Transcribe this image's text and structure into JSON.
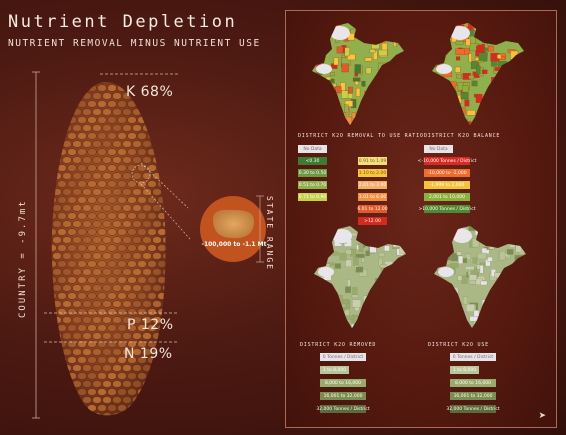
{
  "title": "Nutrient Depletion",
  "subtitle": "NUTRIENT REMOVAL MINUS NUTRIENT USE",
  "country_label": "COUNTRY = -9.7mt",
  "state_range_label": "STATE RANGE",
  "state_range_value": "-100,000 to -1.1 Mt",
  "nutrient_shares": {
    "k": "K 68%",
    "p": "P 12%",
    "n": "N 19%"
  },
  "colors": {
    "background": "#4d1a12",
    "cob": "#8a4a24",
    "kernel": "#b96a33",
    "state_blob": "#d89a54",
    "map_no_data": "#e8e6ea"
  },
  "legends": {
    "ratio": {
      "title": "DISTRICT K2O REMOVAL TO USE RATIO",
      "items": [
        {
          "label": "No Data",
          "color": "#e6e4e8",
          "text": "#7a6a6a"
        },
        {
          "label": "<0.30",
          "color": "#3f7a32",
          "text": "#ffffff"
        },
        {
          "label": "0.30 to 0.50",
          "color": "#6b9a42",
          "text": "#ffffff"
        },
        {
          "label": "0.51 to 0.70",
          "color": "#8fb04c",
          "text": "#ffffff"
        },
        {
          "label": "0.71 to 0.90",
          "color": "#c6d14a",
          "text": "#ffffff"
        },
        {
          "label": "0.91 to 1.09",
          "color": "#f2df7a",
          "text": "#7a5a2a"
        },
        {
          "label": "1.10 to 2.00",
          "color": "#f7c63a",
          "text": "#7a5a2a"
        },
        {
          "label": "2.01 to 3.00",
          "color": "#f4b06a",
          "text": "#ffffff"
        },
        {
          "label": "3.01 to 6.00",
          "color": "#f09040",
          "text": "#ffffff"
        },
        {
          "label": "6.01 to 12.00",
          "color": "#e05a2a",
          "text": "#ffffff"
        },
        {
          "label": ">12.00",
          "color": "#d42a1e",
          "text": "#ffffff"
        }
      ]
    },
    "balance": {
      "title": "DISTRICT K2O BALANCE",
      "items": [
        {
          "label": "No Data",
          "color": "#e6e4e8",
          "text": "#7a6a6a"
        },
        {
          "label": "<-10,000 Tonnes / District",
          "color": "#d82a20",
          "text": "#ffffff"
        },
        {
          "label": "-10,000 to -2,000",
          "color": "#f06a2a",
          "text": "#ffffff"
        },
        {
          "label": "-1,999 to 2,000",
          "color": "#f6c23a",
          "text": "#ffffff"
        },
        {
          "label": "2,001 to 10,000",
          "color": "#8bb23c",
          "text": "#ffffff"
        },
        {
          "label": ">10,000 Tonnes / District",
          "color": "#4e8a32",
          "text": "#ffffff"
        }
      ]
    },
    "removed": {
      "title": "DISTRICT K2O REMOVED",
      "items": [
        {
          "label": "0 Tonnes / District",
          "color": "#e6e4e8",
          "text": "#7a6a6a"
        },
        {
          "label": "1 to 8,000",
          "color": "#b9c497",
          "text": "#ffffff"
        },
        {
          "label": "8,000 to 16,000",
          "color": "#98aa6c",
          "text": "#ffffff"
        },
        {
          "label": "16,001 to 32,000",
          "color": "#7b8d50",
          "text": "#ffffff"
        },
        {
          "label": "32,000 Tonnes / District",
          "color": "#5c6b3a",
          "text": "#ffffff"
        }
      ]
    },
    "use": {
      "title": "DISTRICT K2O USE",
      "items": [
        {
          "label": "0 Tonnes / District",
          "color": "#e6e4e8",
          "text": "#7a6a6a"
        },
        {
          "label": "1 to 8,000",
          "color": "#b9c497",
          "text": "#ffffff"
        },
        {
          "label": "8,000 to 16,000",
          "color": "#98aa6c",
          "text": "#ffffff"
        },
        {
          "label": "16,001 to 32,000",
          "color": "#7b8d50",
          "text": "#ffffff"
        },
        {
          "label": "32,000 Tonnes / District",
          "color": "#5c6b3a",
          "text": "#ffffff"
        }
      ]
    }
  },
  "icons": {
    "next": "arrow-right-icon"
  }
}
